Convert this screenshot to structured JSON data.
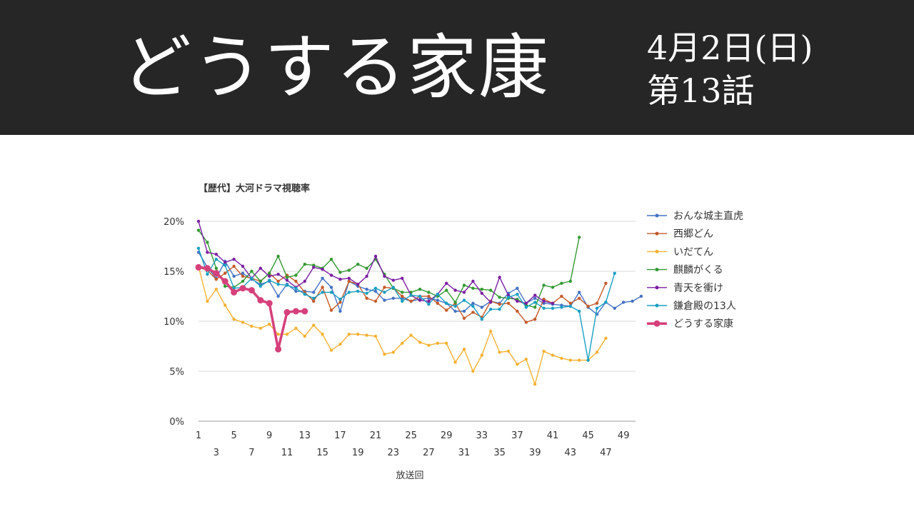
{
  "header": {
    "title": "どうする家康",
    "date": "4月2日(日)",
    "episode": "第13話"
  },
  "chart_data": {
    "type": "line",
    "title": "【歴代】大河ドラマ視聴率",
    "xlabel": "放送回",
    "ylabel": "",
    "ylim": [
      0,
      20
    ],
    "yticks": [
      "0%",
      "5%",
      "10%",
      "15%",
      "20%"
    ],
    "xticks": [
      "1",
      "3",
      "5",
      "7",
      "9",
      "11",
      "13",
      "15",
      "17",
      "19",
      "21",
      "23",
      "25",
      "27",
      "29",
      "31",
      "33",
      "35",
      "37",
      "39",
      "41",
      "43",
      "45",
      "47",
      "49"
    ],
    "xlim": [
      1,
      50
    ],
    "grid": true,
    "legend_position": "right",
    "series": [
      {
        "name": "おんな城主直虎",
        "color": "#4472c4",
        "values": [
          16.9,
          15.4,
          14.3,
          16.0,
          14.5,
          14.8,
          14.2,
          13.7,
          14.0,
          12.5,
          13.7,
          13.0,
          13.0,
          12.9,
          14.3,
          13.4,
          11.0,
          14.0,
          13.5,
          13.2,
          13.0,
          12.1,
          12.3,
          12.3,
          12.0,
          12.2,
          12.3,
          12.1,
          11.8,
          11.0,
          11.0,
          11.8,
          11.4,
          12.0,
          11.8,
          12.8,
          13.3,
          11.8,
          12.3,
          11.8,
          11.7,
          11.6,
          11.5,
          12.9,
          11.4,
          10.7,
          11.9,
          11.3,
          11.9,
          12.0,
          12.5
        ]
      },
      {
        "name": "西郷どん",
        "color": "#c55a2b",
        "values": [
          15.4,
          15.1,
          14.2,
          14.8,
          15.5,
          14.5,
          14.3,
          14.0,
          14.8,
          14.0,
          14.6,
          14.0,
          12.9,
          12.0,
          13.4,
          11.1,
          11.9,
          14.0,
          13.7,
          12.3,
          12.0,
          13.4,
          13.3,
          12.5,
          12.0,
          12.5,
          12.5,
          11.8,
          11.1,
          11.8,
          10.3,
          10.9,
          10.4,
          12.0,
          11.7,
          11.8,
          11.0,
          9.9,
          10.2,
          12.2,
          11.8,
          12.5,
          11.8,
          12.3,
          11.5,
          11.8,
          13.8
        ]
      },
      {
        "name": "いだてん",
        "color": "#f4b133",
        "values": [
          15.5,
          12.0,
          13.2,
          11.6,
          10.2,
          9.9,
          9.5,
          9.3,
          9.7,
          8.7,
          8.7,
          9.3,
          8.5,
          9.6,
          8.7,
          7.1,
          7.7,
          8.7,
          8.7,
          8.6,
          8.5,
          6.7,
          6.9,
          7.8,
          8.6,
          7.9,
          7.6,
          7.8,
          7.8,
          5.9,
          7.2,
          5.0,
          6.6,
          9.0,
          6.9,
          7.0,
          5.7,
          6.2,
          3.7,
          7.0,
          6.6,
          6.3,
          6.1,
          6.1,
          6.1,
          6.9,
          8.3
        ]
      },
      {
        "name": "麒麟がくる",
        "color": "#339933",
        "values": [
          19.1,
          17.9,
          15.3,
          13.5,
          13.4,
          14.0,
          15.0,
          14.0,
          14.8,
          16.5,
          14.4,
          14.6,
          15.7,
          15.6,
          15.3,
          16.2,
          14.9,
          15.1,
          15.7,
          15.3,
          16.2,
          14.7,
          13.3,
          12.9,
          12.9,
          13.2,
          12.9,
          12.5,
          13.1,
          11.9,
          13.6,
          13.3,
          13.2,
          13.1,
          12.4,
          12.3,
          12.2,
          11.6,
          11.4,
          13.6,
          13.4,
          13.8,
          14.0,
          18.4
        ]
      },
      {
        "name": "青天を衝け",
        "color": "#7b1fa2",
        "values": [
          20.0,
          16.9,
          16.7,
          15.9,
          16.2,
          15.5,
          14.3,
          15.3,
          14.5,
          14.7,
          14.1,
          13.4,
          14.0,
          15.4,
          15.2,
          14.6,
          14.2,
          14.3,
          13.7,
          14.5,
          16.5,
          14.5,
          14.1,
          14.3,
          12.6,
          12.1,
          12.0,
          12.7,
          13.8,
          13.1,
          12.9,
          14.0,
          12.8,
          11.9,
          14.4,
          12.6,
          12.0,
          11.8,
          12.6,
          12.0,
          11.8
        ]
      },
      {
        "name": "鎌倉殿の13人",
        "color": "#1a9fc2",
        "values": [
          17.3,
          14.7,
          16.2,
          15.6,
          13.3,
          13.4,
          14.3,
          13.5,
          14.1,
          13.7,
          13.6,
          13.3,
          12.7,
          12.3,
          12.9,
          12.9,
          12.2,
          12.9,
          13.0,
          12.8,
          13.3,
          12.9,
          13.4,
          12.0,
          12.6,
          12.5,
          11.7,
          12.7,
          11.8,
          11.5,
          12.1,
          11.5,
          10.2,
          11.2,
          11.2,
          12.4,
          12.7,
          11.4,
          11.9,
          11.3,
          11.3,
          11.4,
          11.5,
          11.0,
          6.1,
          11.3,
          11.9,
          14.8
        ]
      },
      {
        "name": "どうする家康",
        "color": "#d6407b",
        "thick": true,
        "values": [
          15.4,
          15.3,
          14.8,
          14.0,
          12.9,
          13.3,
          13.1,
          12.1,
          11.8,
          7.2,
          10.9,
          11.0,
          11.0
        ]
      }
    ]
  }
}
